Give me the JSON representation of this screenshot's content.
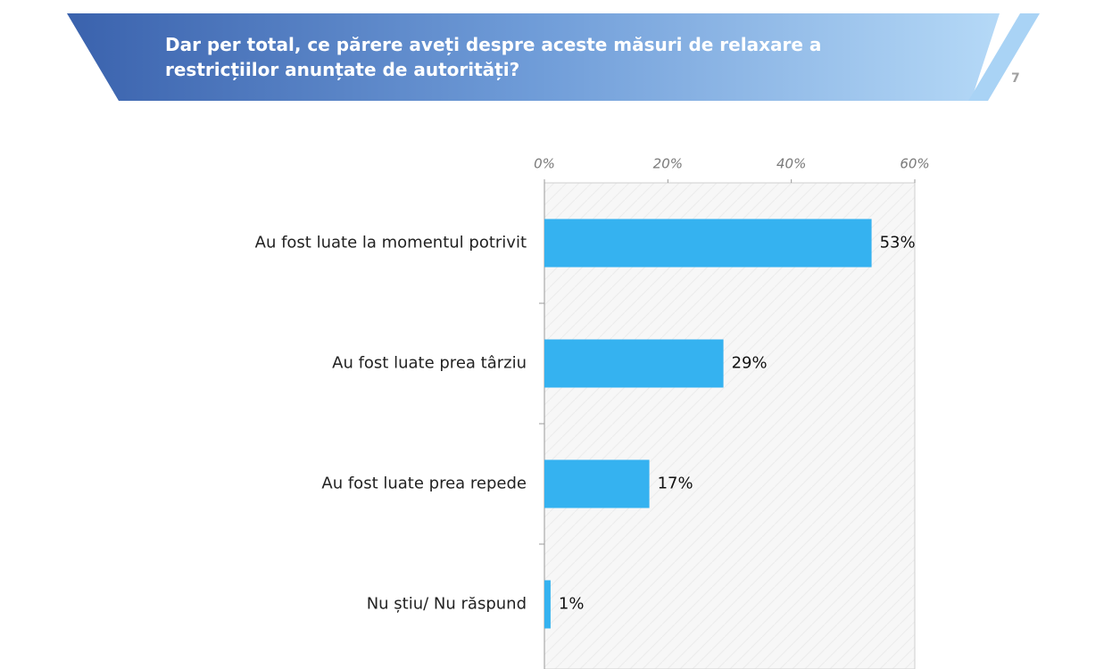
{
  "header": {
    "title": "Dar per total, ce părere aveți despre aceste măsuri de relaxare a restricțiilor anunțate de autorități?",
    "page_number": "7"
  },
  "chart_data": {
    "type": "hbar",
    "categories": [
      "Au fost luate la momentul potrivit",
      "Au fost luate prea târziu",
      "Au fost luate prea repede",
      "Nu știu/ Nu răspund"
    ],
    "values": [
      53,
      29,
      17,
      1
    ],
    "value_labels": [
      "53%",
      "29%",
      "17%",
      "1%"
    ],
    "color": "#35b2f0",
    "xlim": [
      0,
      60
    ],
    "xticks": [
      {
        "value": 0,
        "label": "0%"
      },
      {
        "value": 20,
        "label": "20%"
      },
      {
        "value": 40,
        "label": "40%"
      },
      {
        "value": 60,
        "label": "60%"
      }
    ],
    "grid": false
  }
}
